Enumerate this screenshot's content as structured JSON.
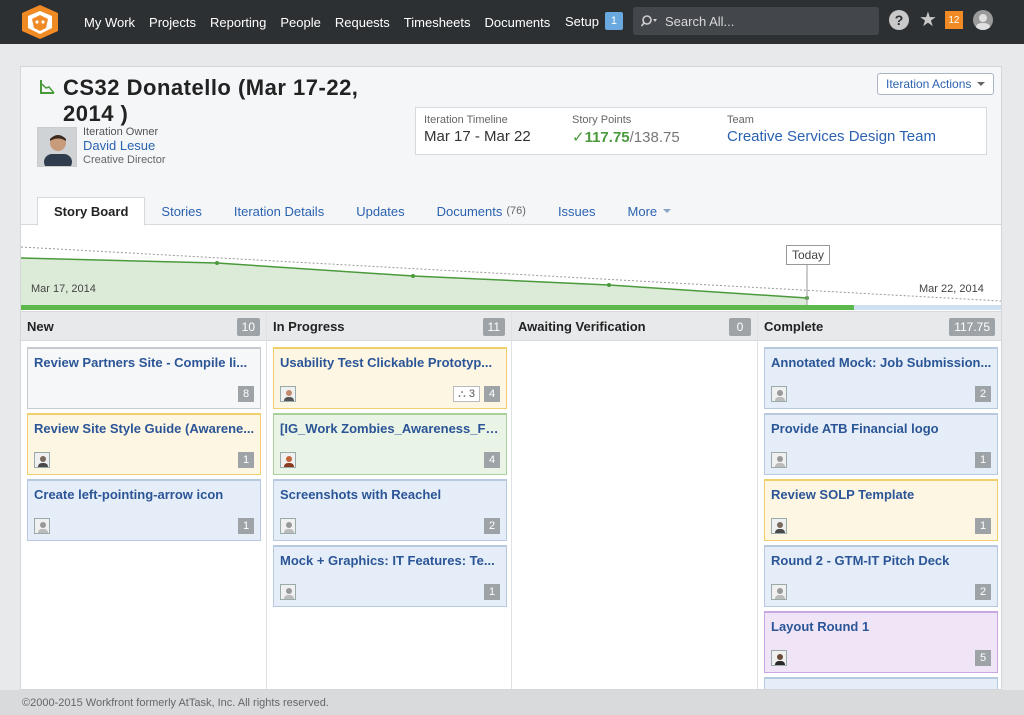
{
  "nav": {
    "items": [
      "My Work",
      "Projects",
      "Reporting",
      "People",
      "Requests",
      "Timesheets",
      "Documents"
    ],
    "setup_label": "Setup",
    "setup_badge": "1",
    "search_placeholder": "Search All...",
    "help_label": "?",
    "notifications_count": "12"
  },
  "iteration": {
    "title": "CS32 Donatello (Mar 17-22, 2014 )",
    "owner_label": "Iteration Owner",
    "owner_name": "David Lesue",
    "owner_role": "Creative Director",
    "actions_label": "Iteration Actions",
    "timeline_label": "Iteration Timeline",
    "timeline_value": "Mar 17 - Mar 22",
    "points_label": "Story Points",
    "points_done": "117.75",
    "points_total": "/138.75",
    "team_label": "Team",
    "team_name": "Creative Services Design Team"
  },
  "tabs": [
    {
      "label": "Story Board",
      "count": ""
    },
    {
      "label": "Stories",
      "count": ""
    },
    {
      "label": "Iteration Details",
      "count": ""
    },
    {
      "label": "Updates",
      "count": ""
    },
    {
      "label": "Documents",
      "count": "(76)"
    },
    {
      "label": "Issues",
      "count": ""
    },
    {
      "label": "More",
      "count": ""
    }
  ],
  "burndown": {
    "today_label": "Today",
    "start_date": "Mar 17, 2014",
    "end_date": "Mar 22, 2014",
    "progress_fraction": 0.85
  },
  "board": {
    "columns": [
      {
        "title": "New",
        "count": "10",
        "cards": [
          {
            "title": "Review Partners Site - Compile li...",
            "points": "8",
            "color": "gray"
          },
          {
            "title": "Review Site Style Guide (Awarene...",
            "points": "1",
            "color": "yellow"
          },
          {
            "title": "Create left-pointing-arrow icon",
            "points": "1",
            "color": "blue"
          }
        ]
      },
      {
        "title": "In Progress",
        "count": "11",
        "cards": [
          {
            "title": "Usability Test Clickable Prototyp...",
            "points": "4",
            "sub": "3",
            "color": "yellow"
          },
          {
            "title": "[IG_Work Zombies_Awareness_Fe...",
            "points": "4",
            "color": "green"
          },
          {
            "title": "Screenshots with Reachel",
            "points": "2",
            "color": "blue"
          },
          {
            "title": "Mock + Graphics: IT Features: Te...",
            "points": "1",
            "color": "blue"
          }
        ]
      },
      {
        "title": "Awaiting Verification",
        "count": "0",
        "cards": []
      },
      {
        "title": "Complete",
        "count": "117.75",
        "cards": [
          {
            "title": "Annotated Mock: Job Submission...",
            "points": "2",
            "color": "blue"
          },
          {
            "title": "Provide ATB Financial logo",
            "points": "1",
            "color": "blue"
          },
          {
            "title": "Review SOLP Template",
            "points": "1",
            "color": "yellow"
          },
          {
            "title": "Round 2 - GTM-IT Pitch Deck",
            "points": "2",
            "color": "blue"
          },
          {
            "title": "Layout Round 1",
            "points": "5",
            "color": "purple"
          }
        ]
      }
    ]
  },
  "footer": {
    "copyright": "©2000-2015 Workfront formerly AtTask, Inc. All rights reserved."
  },
  "colors": {
    "topbar": "#2d3033",
    "brand_orange": "#f08a24",
    "link_blue": "#2b62b0",
    "success_green": "#4a9a3c"
  }
}
